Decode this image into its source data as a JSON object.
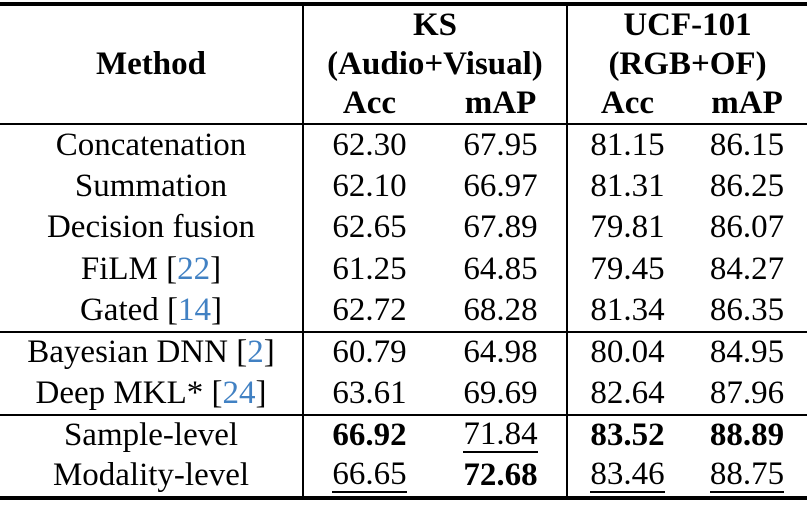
{
  "table": {
    "header": {
      "method": "Method",
      "groups": [
        {
          "title": "KS",
          "subtitle": "(Audio+Visual)",
          "cols": [
            "Acc",
            "mAP"
          ]
        },
        {
          "title": "UCF-101",
          "subtitle": "(RGB+OF)",
          "cols": [
            "Acc",
            "mAP"
          ]
        }
      ]
    },
    "rows": [
      {
        "method": "Concatenation",
        "cite": null,
        "values": [
          "62.30",
          "67.95",
          "81.15",
          "86.15"
        ],
        "styles": [
          "",
          "",
          "",
          ""
        ],
        "rule_after": false
      },
      {
        "method": "Summation",
        "cite": null,
        "values": [
          "62.10",
          "66.97",
          "81.31",
          "86.25"
        ],
        "styles": [
          "",
          "",
          "",
          ""
        ],
        "rule_after": false
      },
      {
        "method": "Decision fusion",
        "cite": null,
        "values": [
          "62.65",
          "67.89",
          "79.81",
          "86.07"
        ],
        "styles": [
          "",
          "",
          "",
          ""
        ],
        "rule_after": false
      },
      {
        "method": "FiLM",
        "cite": "22",
        "values": [
          "61.25",
          "64.85",
          "79.45",
          "84.27"
        ],
        "styles": [
          "",
          "",
          "",
          ""
        ],
        "rule_after": false
      },
      {
        "method": "Gated",
        "cite": "14",
        "values": [
          "62.72",
          "68.28",
          "81.34",
          "86.35"
        ],
        "styles": [
          "",
          "",
          "",
          ""
        ],
        "rule_after": true
      },
      {
        "method": "Bayesian DNN",
        "cite": "2",
        "values": [
          "60.79",
          "64.98",
          "80.04",
          "84.95"
        ],
        "styles": [
          "",
          "",
          "",
          ""
        ],
        "rule_after": false
      },
      {
        "method": "Deep MKL*",
        "cite": "24",
        "values": [
          "63.61",
          "69.69",
          "82.64",
          "87.96"
        ],
        "styles": [
          "",
          "",
          "",
          ""
        ],
        "rule_after": true
      },
      {
        "method": "Sample-level",
        "cite": null,
        "values": [
          "66.92",
          "71.84",
          "83.52",
          "88.89"
        ],
        "styles": [
          "b",
          "u",
          "b",
          "b"
        ],
        "rule_after": false
      },
      {
        "method": "Modality-level",
        "cite": null,
        "values": [
          "66.65",
          "72.68",
          "83.46",
          "88.75"
        ],
        "styles": [
          "u",
          "b",
          "u",
          "u"
        ],
        "rule_after": false
      }
    ]
  },
  "colors": {
    "citation": "#4181c3",
    "text": "#000000",
    "rule": "#000000"
  }
}
